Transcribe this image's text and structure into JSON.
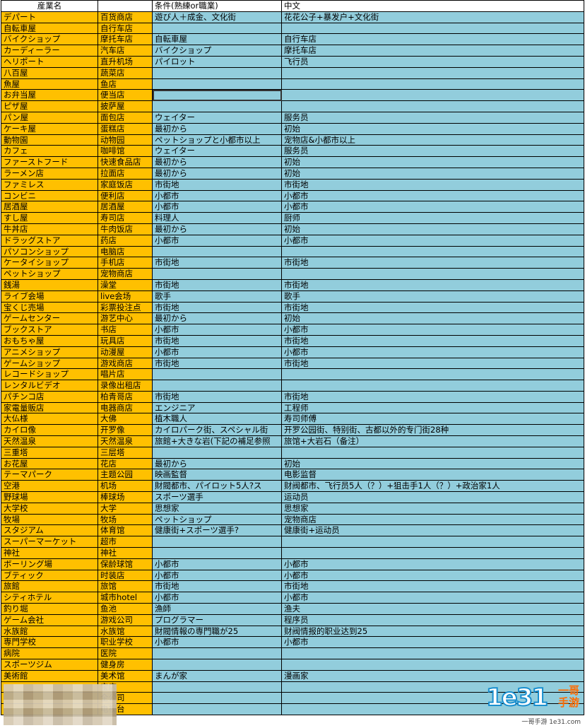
{
  "headers": [
    "産業名",
    "",
    "条件(熟練or職業)",
    "中文"
  ],
  "rows": [
    [
      "デパート",
      "百货商店",
      "遊び人＋成金、文化街",
      "花花公子+暴发户+文化街"
    ],
    [
      "自転車屋",
      "自行车店",
      "",
      ""
    ],
    [
      "バイクショップ",
      "摩托车店",
      "自転車屋",
      "自行车店"
    ],
    [
      "カーディーラー",
      "汽车店",
      "バイクショップ",
      "摩托车店"
    ],
    [
      "ヘリポート",
      "直升机场",
      "パイロット",
      "飞行员"
    ],
    [
      "八百屋",
      "蔬菜店",
      "",
      ""
    ],
    [
      "魚屋",
      "鱼店",
      "",
      ""
    ],
    [
      "お弁当屋",
      "便当店",
      "",
      ""
    ],
    [
      "ピザ屋",
      "披萨屋",
      "",
      ""
    ],
    [
      "パン屋",
      "面包店",
      "ウェイター",
      "服务员"
    ],
    [
      "ケーキ屋",
      "蛋糕店",
      "最初から",
      "初始"
    ],
    [
      "動物園",
      "动物园",
      "ペットショップと小都市以上",
      "宠物店&小都市以上"
    ],
    [
      "カフェ",
      "咖啡馆",
      "ウェイター",
      "服务员"
    ],
    [
      "ファーストフード",
      "快速食品店",
      "最初から",
      "初始"
    ],
    [
      "ラーメン店",
      "拉面店",
      "最初から",
      "初始"
    ],
    [
      "ファミレス",
      "家庭饭店",
      "市街地",
      "市街地"
    ],
    [
      "コンビニ",
      "便利店",
      "小都市",
      "小都市"
    ],
    [
      "居酒屋",
      "居酒屋",
      "小都市",
      "小都市"
    ],
    [
      "すし屋",
      "寿司店",
      "料理人",
      "厨师"
    ],
    [
      "牛丼店",
      "牛肉饭店",
      "最初から",
      "初始"
    ],
    [
      "ドラッグストア",
      "药店",
      "小都市",
      "小都市"
    ],
    [
      "パソコンショップ",
      "电脑店",
      "",
      ""
    ],
    [
      "ケータイショップ",
      "手机店",
      "市街地",
      "市街地"
    ],
    [
      "ペットショップ",
      "宠物商店",
      "",
      ""
    ],
    [
      "銭湯",
      "澡堂",
      "市街地",
      "市街地"
    ],
    [
      "ライブ会場",
      "live会场",
      "歌手",
      "歌手"
    ],
    [
      "宝くじ売場",
      "彩票投注点",
      "市街地",
      "市街地"
    ],
    [
      "ゲームセンター",
      "游艺中心",
      "最初から",
      "初始"
    ],
    [
      "ブックストア",
      "书店",
      "小都市",
      "小都市"
    ],
    [
      "おもちゃ屋",
      "玩具店",
      "市街地",
      "市街地"
    ],
    [
      "アニメショップ",
      "动漫屋",
      "小都市",
      "小都市"
    ],
    [
      "ゲームショップ",
      "游戏商店",
      "市街地",
      "市街地"
    ],
    [
      "レコードショップ",
      "唱片店",
      "",
      ""
    ],
    [
      "レンタルビデオ",
      "录像出租店",
      "",
      ""
    ],
    [
      "パチンコ店",
      "柏青哥店",
      "市街地",
      "市街地"
    ],
    [
      "家電量販店",
      "电器商店",
      "エンジニア",
      "工程师"
    ],
    [
      "大仏様",
      "大佛",
      "植木職人",
      "寿司师傅"
    ],
    [
      "カイロ像",
      "开罗像",
      "カイロパーク街、スペシャル街",
      "开罗公园街、特别街、古都以外的专门街28种"
    ],
    [
      "天然温泉",
      "天然温泉",
      "旅館+大きな岩(下記の補足参照",
      "旅馆+大岩石（备注）"
    ],
    [
      "三重塔",
      "三层塔",
      "",
      ""
    ],
    [
      "お花屋",
      "花店",
      "最初から",
      "初始"
    ],
    [
      "テーマパーク",
      "主题公园",
      "映画監督",
      "电影监督"
    ],
    [
      "空港",
      "机场",
      "財閥都市、パイロット5人?ス",
      "财阀都市、飞行员5人（？）+狙击手1人（？）+政治家1人"
    ],
    [
      "野球場",
      "棒球场",
      "スポーツ選手",
      "运动员"
    ],
    [
      "大学校",
      "大学",
      "思想家",
      "思想家"
    ],
    [
      "牧場",
      "牧场",
      "ペットショップ",
      "宠物商店"
    ],
    [
      "スタジアム",
      "体育馆",
      "健康街+スポーツ選手?",
      "健康街+运动员"
    ],
    [
      "スーパーマーケット",
      "超市",
      "",
      ""
    ],
    [
      "神社",
      "神社",
      "",
      ""
    ],
    [
      "ボーリング場",
      "保龄球馆",
      "小都市",
      "小都市"
    ],
    [
      "ブティック",
      "时装店",
      "小都市",
      "小都市"
    ],
    [
      "旅館",
      "旅馆",
      "市街地",
      "市街地"
    ],
    [
      "シティホテル",
      "城市hotel",
      "小都市",
      "小都市"
    ],
    [
      "釣り堀",
      "鱼池",
      "漁師",
      "渔夫"
    ],
    [
      "ゲーム会社",
      "游戏公司",
      "プログラマー",
      "程序员"
    ],
    [
      "水族館",
      "水族馆",
      "財閥情報の専門職が25",
      "财阀情报的职业达到25"
    ],
    [
      "専門学校",
      "职业学校",
      "小都市",
      "小都市"
    ],
    [
      "病院",
      "医院",
      "",
      ""
    ],
    [
      "スポーツジム",
      "健身房",
      "",
      ""
    ],
    [
      "美術館",
      "美术馆",
      "まんが家",
      "漫画家"
    ],
    [
      "",
      "宝店",
      "",
      ""
    ],
    [
      "",
      "全公司",
      "",
      ""
    ],
    [
      "",
      "电视台",
      "",
      ""
    ]
  ],
  "watermark": {
    "num": "1e31",
    "cn": "一哥手游",
    "url": "一哥手游 1e31.com"
  }
}
